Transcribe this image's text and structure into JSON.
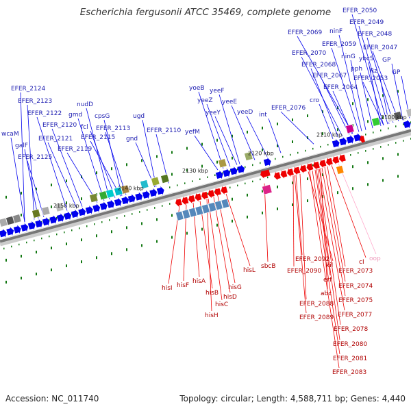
{
  "title": "Escherichia fergusonii ATCC 35469, complete genome",
  "accession": "Accession: NC_011740",
  "summary": "Topology: circular; Length: 4,588,711 bp; Genes: 4,440",
  "colors": {
    "forward": "#0000ee",
    "reverse": "#ee0000",
    "forward_label": "#1a1ab0",
    "reverse_label": "#b00000",
    "tick": "#117711",
    "axis": "#777777"
  },
  "bp_markers": [
    "2100 kbp",
    "2110 kbp",
    "2120 kbp",
    "2130 kbp",
    "2140 kbp",
    "2150 kbp"
  ],
  "forward_genes": [
    "EFER_2050",
    "EFER_2049",
    "EFER_2048",
    "EFER_2047",
    "EFER_2069",
    "ninF",
    "EFER_2059",
    "EFER_2070",
    "ninG",
    "ybcS",
    "GP",
    "EFER_2068",
    "pph",
    "Rz",
    "GP",
    "EFER_2067",
    "EFER_2053",
    "EFER_2064",
    "EFER_2124",
    "EFER_2123",
    "yoeB",
    "yeeF",
    "yeeZ",
    "yeeE",
    "cro",
    "nudD",
    "gmd",
    "EFER_2122",
    "EFER_2120",
    "cpsG",
    "ugd",
    "yeeY",
    "yeeD",
    "int",
    "EFER_2076",
    "fcl",
    "EFER_2113",
    "wcaM",
    "EFER_2115",
    "EFER_2121",
    "EFER_2119",
    "galF",
    "gnd",
    "EFER_2110",
    "yefM",
    "EFER_2125"
  ],
  "reverse_genes": [
    "hisI",
    "hisF",
    "hisA",
    "hisB",
    "hisH",
    "hisC",
    "hisD",
    "hisG",
    "hisL",
    "sbcB",
    "EFER_2092",
    "EFER_2090",
    "kil",
    "erf",
    "abc",
    "EFER_2088",
    "EFER_2089",
    "cI",
    "oop",
    "EFER_2073",
    "EFER_2074",
    "EFER_2075",
    "EFER_2077",
    "EFER_2078",
    "EFER_2080",
    "EFER_2081",
    "EFER_2083"
  ]
}
